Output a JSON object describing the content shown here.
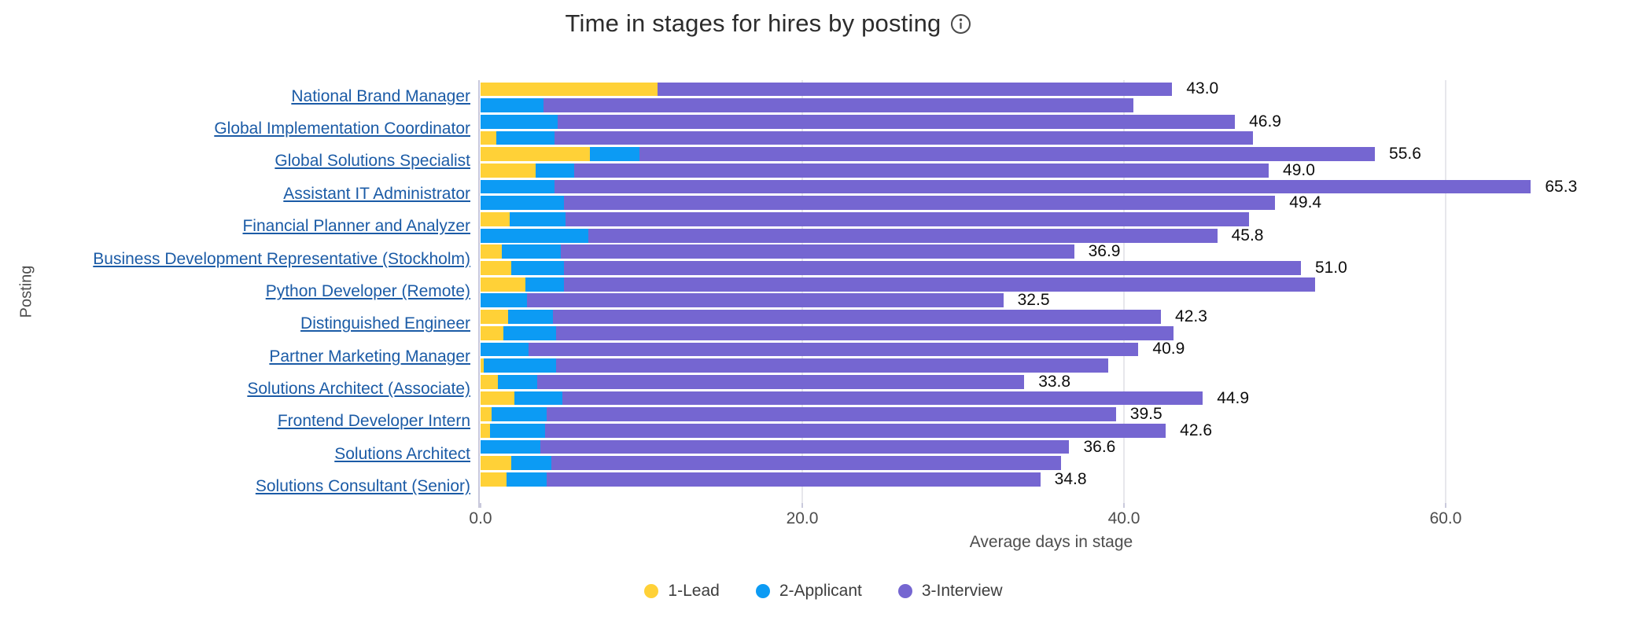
{
  "title": "Time in stages for hires by posting",
  "axes": {
    "y_title": "Posting",
    "x_title": "Average days in stage",
    "x_ticks": [
      "0.0",
      "20.0",
      "40.0",
      "60.0"
    ],
    "x_tick_values": [
      0,
      20,
      40,
      60
    ],
    "x_max": 71
  },
  "legend": [
    {
      "label": "1-Lead",
      "color": "#ffd137"
    },
    {
      "label": "2-Applicant",
      "color": "#0c9bf4"
    },
    {
      "label": "3-Interview",
      "color": "#7566d1"
    }
  ],
  "colors": {
    "link_blue": "#1b5ba6",
    "axis_text": "#4d4d4d",
    "gridline": "#e7e7ec",
    "value_text": "#0d0d0d"
  },
  "chart_data": {
    "type": "bar",
    "orientation": "horizontal",
    "stacked": true,
    "grouped": true,
    "title": "Time in stages for hires by posting",
    "xlabel": "Average days in stage",
    "ylabel": "Posting",
    "xlim": [
      0,
      71
    ],
    "grid": "vertical",
    "legend_position": "bottom-center",
    "series_names": [
      "1-Lead",
      "2-Applicant",
      "3-Interview"
    ],
    "groups": [
      {
        "posting": "National Brand Manager",
        "bars": [
          {
            "lead": 11.0,
            "applicant": 0.0,
            "interview": 32.0,
            "total": 43.0,
            "label": "43.0"
          },
          {
            "lead": 0.0,
            "applicant": 3.9,
            "interview": 36.7,
            "total": 40.6,
            "label": null
          }
        ]
      },
      {
        "posting": "Global Implementation Coordinator",
        "bars": [
          {
            "lead": 0.0,
            "applicant": 4.8,
            "interview": 42.1,
            "total": 46.9,
            "label": "46.9"
          },
          {
            "lead": 1.0,
            "applicant": 3.6,
            "interview": 43.4,
            "total": 48.0,
            "label": null
          }
        ]
      },
      {
        "posting": "Global Solutions Specialist",
        "bars": [
          {
            "lead": 6.8,
            "applicant": 3.1,
            "interview": 45.7,
            "total": 55.6,
            "label": "55.6"
          },
          {
            "lead": 3.4,
            "applicant": 2.4,
            "interview": 43.2,
            "total": 49.0,
            "label": "49.0"
          }
        ]
      },
      {
        "posting": "Assistant IT Administrator",
        "bars": [
          {
            "lead": 0.0,
            "applicant": 4.6,
            "interview": 60.7,
            "total": 65.3,
            "label": "65.3"
          },
          {
            "lead": 0.0,
            "applicant": 5.2,
            "interview": 44.2,
            "total": 49.4,
            "label": "49.4"
          }
        ]
      },
      {
        "posting": "Financial Planner and Analyzer",
        "bars": [
          {
            "lead": 1.8,
            "applicant": 3.5,
            "interview": 42.5,
            "total": 47.8,
            "label": null
          },
          {
            "lead": 0.0,
            "applicant": 6.7,
            "interview": 39.1,
            "total": 45.8,
            "label": "45.8"
          }
        ]
      },
      {
        "posting": "Business Development Representative (Stockholm)",
        "bars": [
          {
            "lead": 1.3,
            "applicant": 3.7,
            "interview": 31.9,
            "total": 36.9,
            "label": "36.9"
          },
          {
            "lead": 1.9,
            "applicant": 3.3,
            "interview": 45.8,
            "total": 51.0,
            "label": "51.0"
          }
        ]
      },
      {
        "posting": "Python Developer (Remote)",
        "bars": [
          {
            "lead": 2.8,
            "applicant": 2.4,
            "interview": 46.7,
            "total": 51.9,
            "label": null
          },
          {
            "lead": 0.0,
            "applicant": 2.9,
            "interview": 29.6,
            "total": 32.5,
            "label": "32.5"
          }
        ]
      },
      {
        "posting": "Distinguished Engineer",
        "bars": [
          {
            "lead": 1.7,
            "applicant": 2.8,
            "interview": 37.8,
            "total": 42.3,
            "label": "42.3"
          },
          {
            "lead": 1.4,
            "applicant": 3.3,
            "interview": 38.4,
            "total": 43.1,
            "label": null
          }
        ]
      },
      {
        "posting": "Partner Marketing Manager",
        "bars": [
          {
            "lead": 0.0,
            "applicant": 3.0,
            "interview": 37.9,
            "total": 40.9,
            "label": "40.9"
          },
          {
            "lead": 0.2,
            "applicant": 4.5,
            "interview": 34.3,
            "total": 39.0,
            "label": null
          }
        ]
      },
      {
        "posting": "Solutions Architect (Associate)",
        "bars": [
          {
            "lead": 1.1,
            "applicant": 2.4,
            "interview": 30.3,
            "total": 33.8,
            "label": "33.8"
          },
          {
            "lead": 2.1,
            "applicant": 3.0,
            "interview": 39.8,
            "total": 44.9,
            "label": "44.9"
          }
        ]
      },
      {
        "posting": "Frontend Developer Intern",
        "bars": [
          {
            "lead": 0.7,
            "applicant": 3.4,
            "interview": 35.4,
            "total": 39.5,
            "label": "39.5"
          },
          {
            "lead": 0.6,
            "applicant": 3.4,
            "interview": 38.6,
            "total": 42.6,
            "label": "42.6"
          }
        ]
      },
      {
        "posting": "Solutions Architect",
        "bars": [
          {
            "lead": 0.0,
            "applicant": 3.7,
            "interview": 32.9,
            "total": 36.6,
            "label": "36.6"
          },
          {
            "lead": 1.9,
            "applicant": 2.5,
            "interview": 31.7,
            "total": 36.1,
            "label": null
          }
        ]
      },
      {
        "posting": "Solutions Consultant (Senior)",
        "bars": [
          {
            "lead": 1.6,
            "applicant": 2.5,
            "interview": 30.7,
            "total": 34.8,
            "label": "34.8"
          }
        ]
      }
    ]
  }
}
